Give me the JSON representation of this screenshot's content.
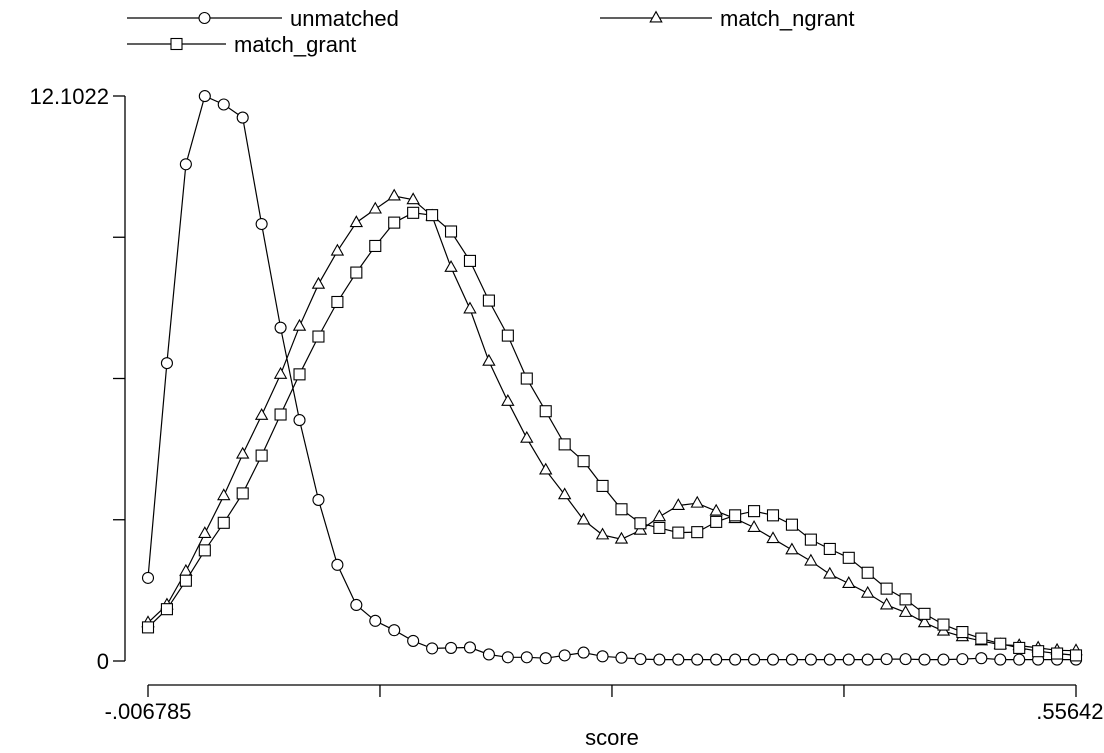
{
  "chart_data": {
    "type": "line",
    "xlabel": "score",
    "ylabel": "",
    "xlim": [
      -0.006785,
      0.556422
    ],
    "ylim": [
      0,
      12.1022
    ],
    "x_tick_labels": [
      {
        "value": -0.006785,
        "label": "-.006785"
      },
      {
        "value": 0.556422,
        "label": ".556422"
      }
    ],
    "x_ticks_unlabeled": [
      0.134,
      0.2748,
      0.4156
    ],
    "y_tick_labels": [
      {
        "value": 0,
        "label": "0"
      },
      {
        "value": 12.1022,
        "label": "12.1022"
      }
    ],
    "y_ticks_unlabeled": [
      3.0256,
      6.0511,
      9.0767
    ],
    "legend_position": "top",
    "series": [
      {
        "name": "unmatched",
        "marker": "circle",
        "x": [
          -0.006785,
          0.004709,
          0.016204,
          0.027698,
          0.039192,
          0.050687,
          0.062181,
          0.073675,
          0.08517,
          0.096664,
          0.108158,
          0.119653,
          0.131147,
          0.142641,
          0.154135,
          0.16563,
          0.177124,
          0.188618,
          0.200113,
          0.211607,
          0.223101,
          0.234596,
          0.24609,
          0.257584,
          0.269079,
          0.280573,
          0.292067,
          0.303562,
          0.315056,
          0.32655,
          0.338045,
          0.349539,
          0.361033,
          0.372528,
          0.384022,
          0.395516,
          0.407011,
          0.418505,
          0.429999,
          0.441494,
          0.452988,
          0.464482,
          0.475977,
          0.487471,
          0.498965,
          0.510459,
          0.521954,
          0.533448,
          0.544942,
          0.556422
        ],
        "values": [
          1.78,
          6.38,
          10.64,
          12.1,
          11.92,
          11.64,
          9.36,
          7.14,
          5.16,
          3.45,
          2.06,
          1.2,
          0.86,
          0.66,
          0.43,
          0.27,
          0.28,
          0.29,
          0.14,
          0.08,
          0.08,
          0.06,
          0.12,
          0.18,
          0.1,
          0.07,
          0.04,
          0.03,
          0.03,
          0.03,
          0.03,
          0.03,
          0.03,
          0.03,
          0.03,
          0.03,
          0.03,
          0.03,
          0.03,
          0.04,
          0.04,
          0.03,
          0.03,
          0.04,
          0.06,
          0.03,
          0.03,
          0.03,
          0.03,
          0.03
        ]
      },
      {
        "name": "match_ngrant",
        "marker": "triangle",
        "x": [
          -0.006785,
          0.004709,
          0.016204,
          0.027698,
          0.039192,
          0.050687,
          0.062181,
          0.073675,
          0.08517,
          0.096664,
          0.108158,
          0.119653,
          0.131147,
          0.142641,
          0.154135,
          0.16563,
          0.177124,
          0.188618,
          0.200113,
          0.211607,
          0.223101,
          0.234596,
          0.24609,
          0.257584,
          0.269079,
          0.280573,
          0.292067,
          0.303562,
          0.315056,
          0.32655,
          0.338045,
          0.349539,
          0.361033,
          0.372528,
          0.384022,
          0.395516,
          0.407011,
          0.418505,
          0.429999,
          0.441494,
          0.452988,
          0.464482,
          0.475977,
          0.487471,
          0.498965,
          0.510459,
          0.521954,
          0.533448,
          0.544942,
          0.556422
        ],
        "values": [
          0.82,
          1.2,
          1.92,
          2.73,
          3.54,
          4.43,
          5.26,
          6.14,
          7.17,
          8.07,
          8.78,
          9.39,
          9.68,
          9.96,
          9.88,
          9.53,
          8.43,
          7.54,
          6.42,
          5.56,
          4.77,
          4.09,
          3.56,
          3.02,
          2.7,
          2.61,
          2.8,
          3.09,
          3.33,
          3.38,
          3.21,
          3.05,
          2.86,
          2.62,
          2.38,
          2.14,
          1.86,
          1.66,
          1.45,
          1.2,
          1.04,
          0.82,
          0.64,
          0.52,
          0.43,
          0.35,
          0.33,
          0.28,
          0.23,
          0.22
        ]
      },
      {
        "name": "match_grant",
        "marker": "square",
        "x": [
          -0.006785,
          0.004709,
          0.016204,
          0.027698,
          0.039192,
          0.050687,
          0.062181,
          0.073675,
          0.08517,
          0.096664,
          0.108158,
          0.119653,
          0.131147,
          0.142641,
          0.154135,
          0.16563,
          0.177124,
          0.188618,
          0.200113,
          0.211607,
          0.223101,
          0.234596,
          0.24609,
          0.257584,
          0.269079,
          0.280573,
          0.292067,
          0.303562,
          0.315056,
          0.32655,
          0.338045,
          0.349539,
          0.361033,
          0.372528,
          0.384022,
          0.395516,
          0.407011,
          0.418505,
          0.429999,
          0.441494,
          0.452988,
          0.464482,
          0.475977,
          0.487471,
          0.498965,
          0.510459,
          0.521954,
          0.533448,
          0.544942,
          0.556422
        ],
        "values": [
          0.72,
          1.11,
          1.72,
          2.37,
          2.96,
          3.59,
          4.4,
          5.28,
          6.14,
          6.95,
          7.69,
          8.32,
          8.89,
          9.39,
          9.6,
          9.55,
          9.2,
          8.57,
          7.72,
          6.97,
          6.05,
          5.35,
          4.64,
          4.28,
          3.75,
          3.25,
          2.95,
          2.85,
          2.75,
          2.76,
          2.98,
          3.12,
          3.21,
          3.12,
          2.92,
          2.6,
          2.4,
          2.21,
          1.89,
          1.55,
          1.32,
          1.01,
          0.78,
          0.62,
          0.48,
          0.37,
          0.28,
          0.21,
          0.16,
          0.12
        ]
      }
    ]
  }
}
